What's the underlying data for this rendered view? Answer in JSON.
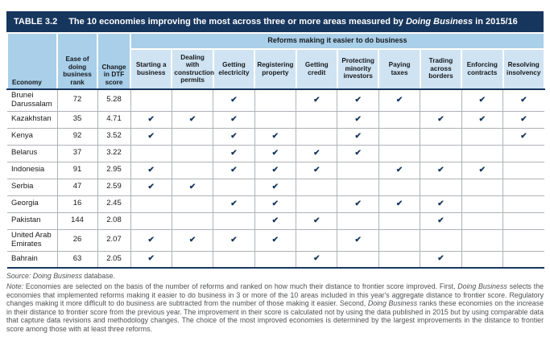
{
  "colors": {
    "navy": "#17365d",
    "header_blue": "#a9cfe9",
    "subheader_blue": "#cfe3f2",
    "grid_gray": "#aeb2b6",
    "note_gray": "#4f5154"
  },
  "table": {
    "tag": "TABLE 3.2",
    "title_segments": [
      {
        "text": "The 10 economies improving the most across three or more areas measured by ",
        "italic": false
      },
      {
        "text": "Doing Business",
        "italic": true
      },
      {
        "text": " in 2015/16",
        "italic": false
      }
    ],
    "group_header": "Reforms making it easier to do business",
    "columns": [
      {
        "key": "economy",
        "label": "Economy"
      },
      {
        "key": "rank",
        "label": "Ease of doing business rank"
      },
      {
        "key": "dtf",
        "label": "Change in DTF score"
      }
    ],
    "area_columns": [
      "Starting a business",
      "Dealing with construction permits",
      "Getting electricity",
      "Registering property",
      "Getting credit",
      "Protecting minority investors",
      "Paying taxes",
      "Trading across borders",
      "Enforcing contracts",
      "Resolving insolvency"
    ],
    "check_glyph": "✔",
    "rows": [
      {
        "economy": "Brunei Darussalam",
        "rank": "72",
        "dtf": "5.28",
        "reforms": [
          0,
          0,
          1,
          0,
          1,
          1,
          1,
          0,
          1,
          1
        ]
      },
      {
        "economy": "Kazakhstan",
        "rank": "35",
        "dtf": "4.71",
        "reforms": [
          1,
          1,
          1,
          0,
          0,
          1,
          0,
          1,
          1,
          1
        ]
      },
      {
        "economy": "Kenya",
        "rank": "92",
        "dtf": "3.52",
        "reforms": [
          1,
          0,
          1,
          1,
          0,
          1,
          0,
          0,
          0,
          1
        ]
      },
      {
        "economy": "Belarus",
        "rank": "37",
        "dtf": "3.22",
        "reforms": [
          0,
          0,
          1,
          1,
          1,
          1,
          0,
          0,
          0,
          0
        ]
      },
      {
        "economy": "Indonesia",
        "rank": "91",
        "dtf": "2.95",
        "reforms": [
          1,
          0,
          1,
          1,
          1,
          0,
          1,
          1,
          1,
          0
        ]
      },
      {
        "economy": "Serbia",
        "rank": "47",
        "dtf": "2.59",
        "reforms": [
          1,
          1,
          0,
          1,
          0,
          0,
          0,
          0,
          0,
          0
        ]
      },
      {
        "economy": "Georgia",
        "rank": "16",
        "dtf": "2.45",
        "reforms": [
          0,
          0,
          1,
          1,
          0,
          1,
          1,
          1,
          0,
          0
        ]
      },
      {
        "economy": "Pakistan",
        "rank": "144",
        "dtf": "2.08",
        "reforms": [
          0,
          0,
          0,
          1,
          1,
          0,
          0,
          1,
          0,
          0
        ]
      },
      {
        "economy": "United Arab Emirates",
        "rank": "26",
        "dtf": "2.07",
        "reforms": [
          1,
          1,
          1,
          1,
          0,
          1,
          0,
          0,
          0,
          0
        ]
      },
      {
        "economy": "Bahrain",
        "rank": "63",
        "dtf": "2.05",
        "reforms": [
          1,
          0,
          0,
          0,
          1,
          0,
          0,
          1,
          0,
          0
        ]
      }
    ]
  },
  "footer": {
    "source_segments": [
      {
        "text": "Source: ",
        "italic": true
      },
      {
        "text": "Doing Business",
        "italic": true
      },
      {
        "text": " database.",
        "italic": false
      }
    ],
    "note_segments": [
      {
        "text": "Note:",
        "italic": true
      },
      {
        "text": " Economies are selected on the basis of the number of reforms and ranked on how much their distance to frontier score improved. First, ",
        "italic": false
      },
      {
        "text": "Doing Business",
        "italic": true
      },
      {
        "text": " selects the economies that implemented reforms making it easier to do business in 3 or more of the 10 areas included in this year's aggregate distance to frontier score. Regulatory changes making it more difficult to do business are subtracted from the number of those making it easier. Second, ",
        "italic": false
      },
      {
        "text": "Doing Business",
        "italic": true
      },
      {
        "text": " ranks these economies on the increase in their distance to frontier score from the previous year. The improvement in their score is calculated not by using the data published in 2015 but by using comparable data that capture data revisions and methodology changes. The choice of the most improved economies is determined by the largest improvements in the distance to frontier score among those with at least three reforms.",
        "italic": false
      }
    ]
  }
}
